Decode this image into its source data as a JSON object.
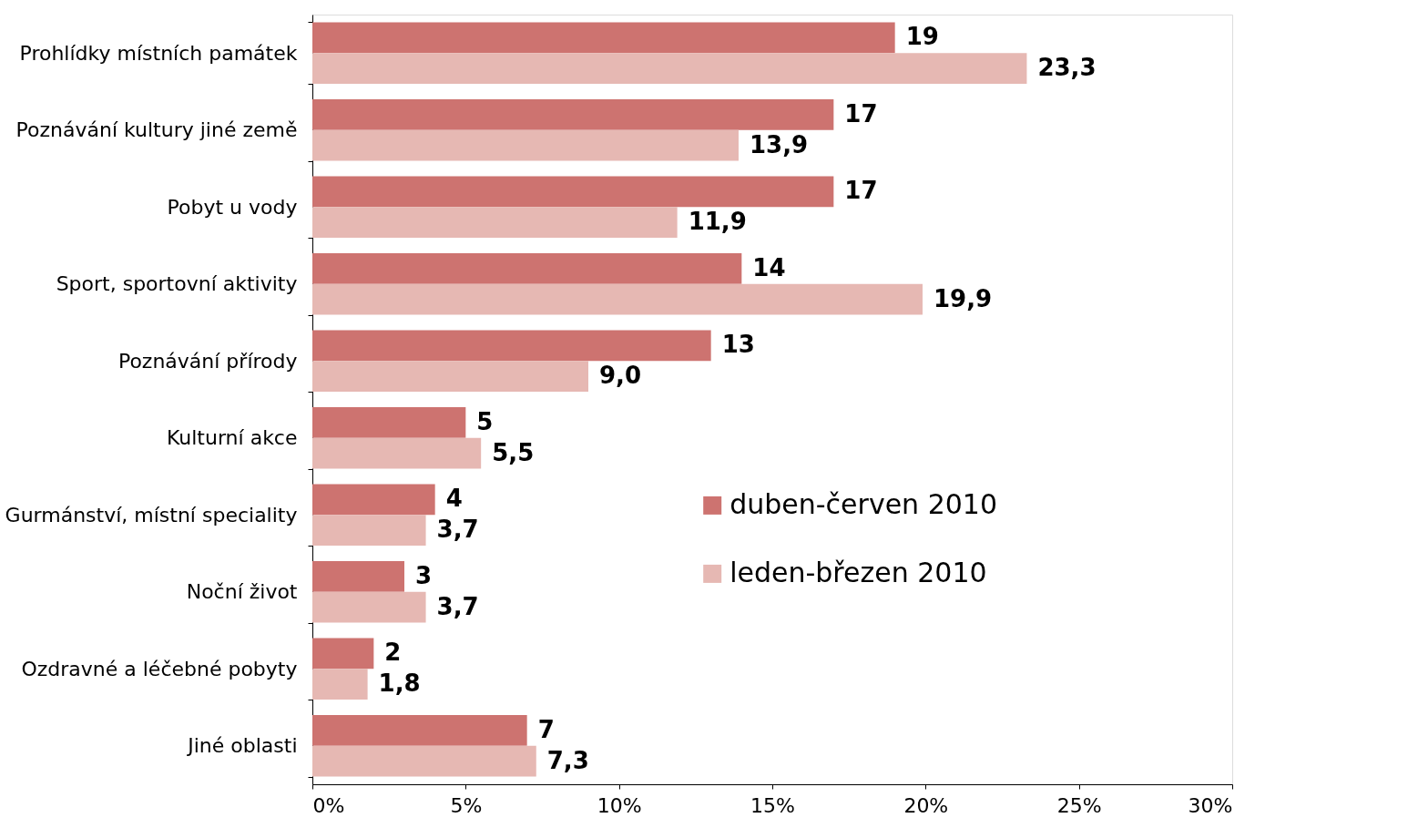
{
  "chart_data": {
    "type": "bar",
    "orientation": "horizontal",
    "categories": [
      "Prohlídky místních památek",
      "Poznávání kultury jiné země",
      "Pobyt u vody",
      "Sport, sportovní aktivity",
      "Poznávání přírody",
      "Kulturní akce",
      "Gurmánství, místní speciality",
      "Noční život",
      "Ozdravné a léčebné pobyty",
      "Jiné oblasti"
    ],
    "series": [
      {
        "name": "duben-červen 2010",
        "color": "#cd7370",
        "values": [
          19,
          17,
          17,
          14,
          13,
          5,
          4,
          3,
          2,
          7
        ],
        "value_labels": [
          "19",
          "17",
          "17",
          "14",
          "13",
          "5",
          "4",
          "3",
          "2",
          "7"
        ]
      },
      {
        "name": "leden-březen 2010",
        "color": "#e6b8b3",
        "values": [
          23.3,
          13.9,
          11.9,
          19.9,
          9.0,
          5.5,
          3.7,
          3.7,
          1.8,
          7.3
        ],
        "value_labels": [
          "23,3",
          "13,9",
          "11,9",
          "19,9",
          "9,0",
          "5,5",
          "3,7",
          "3,7",
          "1,8",
          "7,3"
        ]
      }
    ],
    "xlim": [
      0,
      30
    ],
    "xticks": [
      {
        "value": 0,
        "label": "0%"
      },
      {
        "value": 5,
        "label": "5%"
      },
      {
        "value": 10,
        "label": "10%"
      },
      {
        "value": 15,
        "label": "15%"
      },
      {
        "value": 20,
        "label": "20%"
      },
      {
        "value": 25,
        "label": "25%"
      },
      {
        "value": 30,
        "label": "30%"
      }
    ],
    "grid": false,
    "legend": "right"
  }
}
